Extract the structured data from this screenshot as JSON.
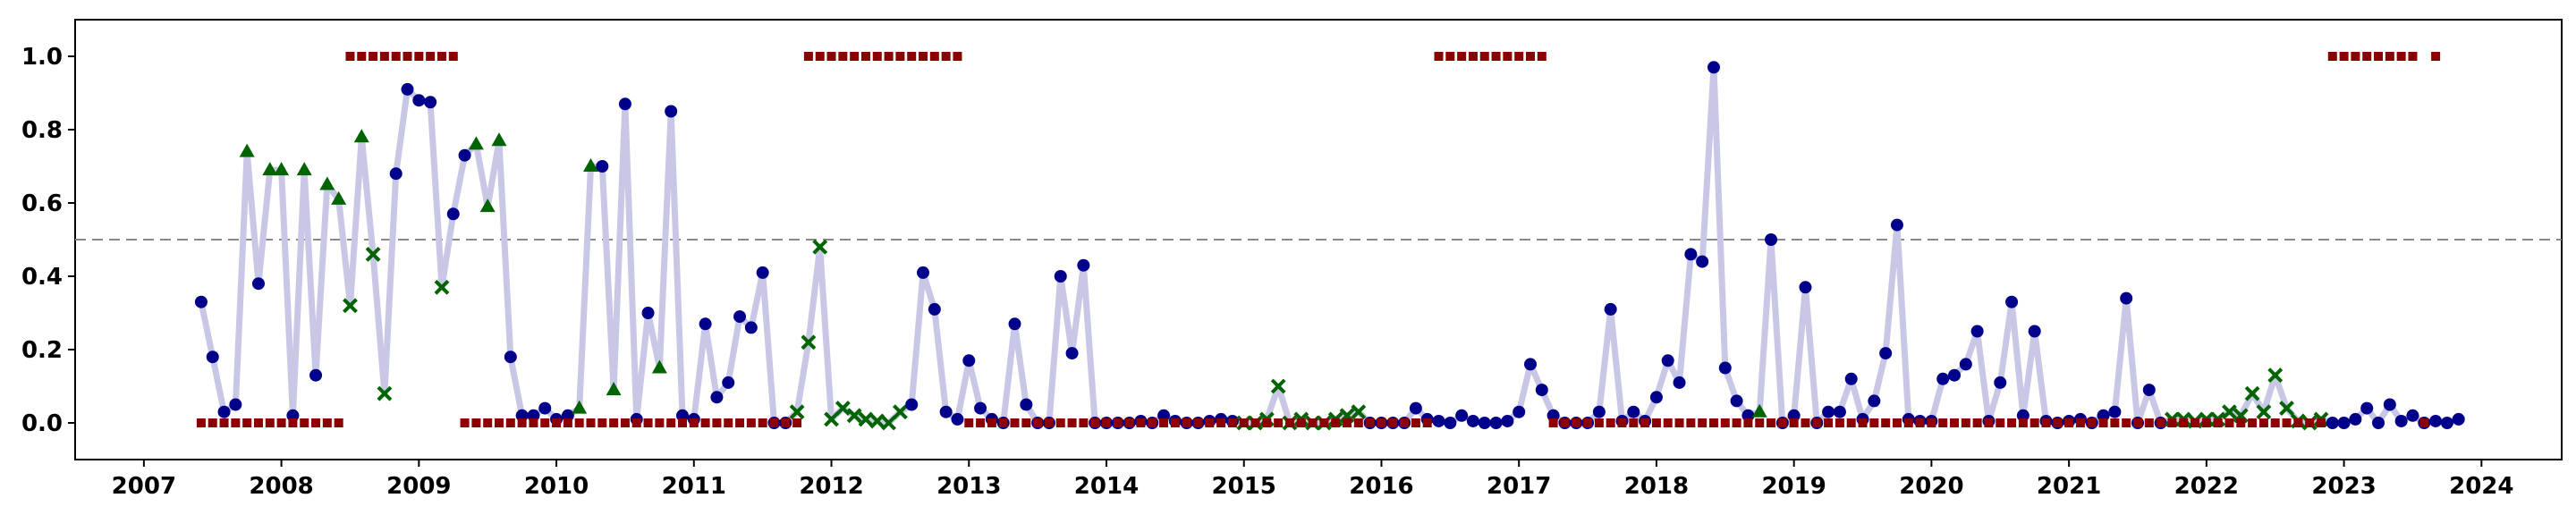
{
  "chart_data": {
    "type": "line",
    "title": "",
    "xlabel": "",
    "ylabel": "",
    "xlim": [
      "2006-07-01",
      "2024-08-01"
    ],
    "ylim": [
      -0.1,
      1.1
    ],
    "grid": false,
    "legend": "none",
    "threshold": 0.5,
    "x_ticks": [
      "2007",
      "2008",
      "2009",
      "2010",
      "2011",
      "2012",
      "2013",
      "2014",
      "2015",
      "2016",
      "2017",
      "2018",
      "2019",
      "2020",
      "2021",
      "2022",
      "2023",
      "2024"
    ],
    "y_ticks": [
      "0.0",
      "0.2",
      "0.4",
      "0.6",
      "0.8",
      "1.0"
    ],
    "colors": {
      "line": "#c8c8e6",
      "circle": "#00008b",
      "triangle": "#006400",
      "cross": "#006400",
      "square": "#8b0000",
      "threshold": "#888888"
    },
    "start": "2007-06",
    "values": [
      0.33,
      0.18,
      0.03,
      0.05,
      0.74,
      0.38,
      0.69,
      0.69,
      0.02,
      0.69,
      0.13,
      0.65,
      0.61,
      0.32,
      0.78,
      0.46,
      0.08,
      0.68,
      0.91,
      0.88,
      0.875,
      0.37,
      0.57,
      0.73,
      0.76,
      0.59,
      0.77,
      0.18,
      0.02,
      0.02,
      0.04,
      0.01,
      0.02,
      0.04,
      0.7,
      0.7,
      0.09,
      0.87,
      0.01,
      0.3,
      0.15,
      0.85,
      0.02,
      0.01,
      0.27,
      0.07,
      0.11,
      0.29,
      0.26,
      0.41,
      0.0,
      0.0,
      0.03,
      0.22,
      0.48,
      0.01,
      0.04,
      0.02,
      0.01,
      0.005,
      0.0,
      0.03,
      0.05,
      0.41,
      0.31,
      0.03,
      0.01,
      0.17,
      0.04,
      0.01,
      0.0,
      0.27,
      0.05,
      0.0,
      0.0,
      0.4,
      0.19,
      0.43,
      0.0,
      0.0,
      0.0,
      0.0,
      0.005,
      0.0,
      0.02,
      0.005,
      0.0,
      0.0,
      0.005,
      0.01,
      0.005,
      0.0,
      0.0,
      0.01,
      0.1,
      0.0,
      0.01,
      0.0,
      0.0,
      0.01,
      0.02,
      0.03,
      0.0,
      0.0,
      0.0,
      0.0,
      0.04,
      0.01,
      0.005,
      0.0,
      0.02,
      0.005,
      0.0,
      0.0,
      0.005,
      0.03,
      0.16,
      0.09,
      0.02,
      0.0,
      0.0,
      0.0,
      0.03,
      0.31,
      0.005,
      0.03,
      0.005,
      0.07,
      0.17,
      0.11,
      0.46,
      0.44,
      0.97,
      0.15,
      0.06,
      0.02,
      0.03,
      0.5,
      0.0,
      0.02,
      0.37,
      0.0,
      0.03,
      0.03,
      0.12,
      0.01,
      0.06,
      0.19,
      0.54,
      0.01,
      0.005,
      0.005,
      0.12,
      0.13,
      0.16,
      0.25,
      0.005,
      0.11,
      0.33,
      0.02,
      0.25,
      0.005,
      0.0,
      0.005,
      0.01,
      0.0,
      0.02,
      0.03,
      0.34,
      0.0,
      0.09,
      0.0,
      0.01,
      0.01,
      0.005,
      0.01,
      0.01,
      0.03,
      0.02,
      0.08,
      0.03,
      0.13,
      0.04,
      0.005,
      0.0,
      0.01,
      0.0,
      0.0,
      0.01,
      0.04,
      0.0,
      0.05,
      0.005,
      0.02,
      0.0,
      0.005,
      0.0,
      0.01
    ],
    "markers": "oooo^o^^o^o^^x^xxooooxoo^^^oooooo^^o^ooo^oooooooooooxxxxxxxxxxoooooooooooooooooooooooooooooxxxxxxxxxxxoooooooooooooooooooooooooooooooooo^oooooooooooooooooooooooooooooooooooxxxxxxxxxxxxxx",
    "flags": "00000000000000010000000000000000000000000000000000000000000000000000000000000000000000000000000000000000000000000000000000000000000000000000000000000000000000000000000000000000000000000000000000",
    "flag_pattern": "0000000000000111111111100000000000000000000000000000011111111111111000000000000000000000000000000000000000001111111111000000000000000000000000000000000000000000000000000000000000000000001111111101"
  }
}
